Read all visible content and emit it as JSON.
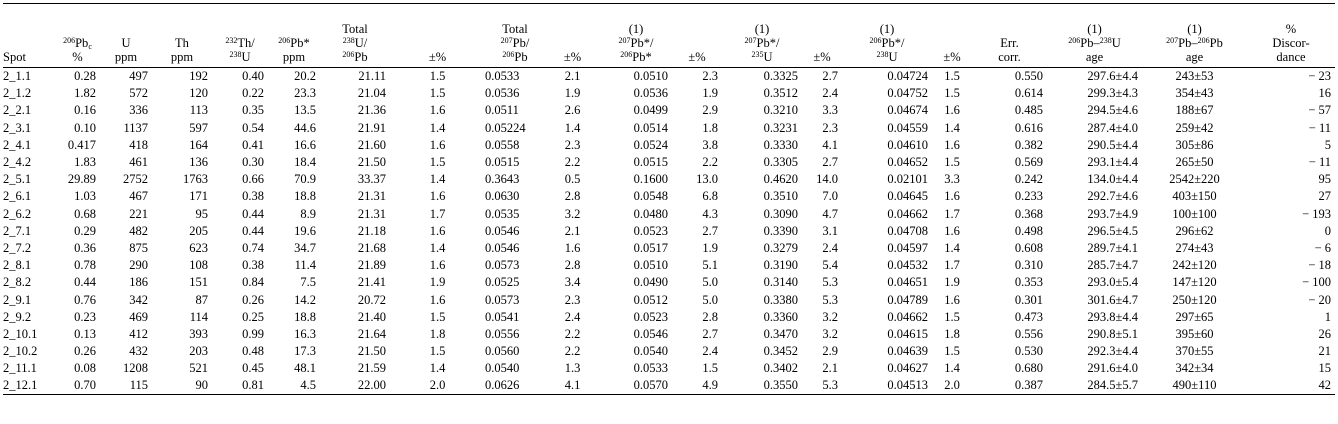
{
  "header": [
    [
      [
        "Spot"
      ]
    ],
    [
      [
        {
          "sup": "206"
        },
        "Pb",
        {
          "sub": "c"
        }
      ],
      [
        "%"
      ]
    ],
    [
      [
        "U"
      ],
      [
        "ppm"
      ]
    ],
    [
      [
        "Th"
      ],
      [
        "ppm"
      ]
    ],
    [
      [
        {
          "sup": "232"
        },
        "Th/"
      ],
      [
        {
          "sup": "238"
        },
        "U"
      ]
    ],
    [
      [
        {
          "sup": "206"
        },
        "Pb*"
      ],
      [
        "ppm"
      ]
    ],
    [
      [
        "Total"
      ],
      [
        {
          "sup": "238"
        },
        "U/"
      ],
      [
        {
          "sup": "206"
        },
        "Pb"
      ]
    ],
    [
      [
        "±%"
      ]
    ],
    [
      [
        "Total"
      ],
      [
        {
          "sup": "207"
        },
        "Pb/"
      ],
      [
        {
          "sup": "206"
        },
        "Pb"
      ]
    ],
    [
      [
        "±%"
      ]
    ],
    [
      [
        "(1)"
      ],
      [
        {
          "sup": "207"
        },
        "Pb*/"
      ],
      [
        {
          "sup": "206"
        },
        "Pb*"
      ]
    ],
    [
      [
        "±%"
      ]
    ],
    [
      [
        "(1)"
      ],
      [
        {
          "sup": "207"
        },
        "Pb*/"
      ],
      [
        {
          "sup": "235"
        },
        "U"
      ]
    ],
    [
      [
        "±%"
      ]
    ],
    [
      [
        "(1)"
      ],
      [
        {
          "sup": "206"
        },
        "Pb*/"
      ],
      [
        {
          "sup": "238"
        },
        "U"
      ]
    ],
    [
      [
        "±%"
      ]
    ],
    [
      [
        "Err."
      ],
      [
        "corr."
      ]
    ],
    [
      [
        "(1)"
      ],
      [
        {
          "sup": "206"
        },
        "Pb–",
        {
          "sup": "238"
        },
        "U"
      ],
      [
        "age"
      ]
    ],
    [
      [
        "(1)"
      ],
      [
        {
          "sup": "207"
        },
        "Pb–",
        {
          "sup": "206"
        },
        "Pb"
      ],
      [
        "age"
      ]
    ],
    [
      [
        "%"
      ],
      [
        "Discor-"
      ],
      [
        "dance"
      ]
    ]
  ],
  "rows": [
    [
      "2_1.1",
      "0.28",
      "497",
      "192",
      "0.40",
      "20.2",
      "21.11",
      "1.5",
      "0.0533",
      "2.1",
      "0.0510",
      "2.3",
      "0.3325",
      "2.7",
      "0.04724",
      "1.5",
      "0.550",
      "297.6±4.4",
      "243±53",
      "− 23"
    ],
    [
      "2_1.2",
      "1.82",
      "572",
      "120",
      "0.22",
      "23.3",
      "21.04",
      "1.5",
      "0.0536",
      "1.9",
      "0.0536",
      "1.9",
      "0.3512",
      "2.4",
      "0.04752",
      "1.5",
      "0.614",
      "299.3±4.3",
      "354±43",
      "16"
    ],
    [
      "2_2.1",
      "0.16",
      "336",
      "113",
      "0.35",
      "13.5",
      "21.36",
      "1.6",
      "0.0511",
      "2.6",
      "0.0499",
      "2.9",
      "0.3210",
      "3.3",
      "0.04674",
      "1.6",
      "0.485",
      "294.5±4.6",
      "188±67",
      "− 57"
    ],
    [
      "2_3.1",
      "0.10",
      "1137",
      "597",
      "0.54",
      "44.6",
      "21.91",
      "1.4",
      "0.05224",
      "1.4",
      "0.0514",
      "1.8",
      "0.3231",
      "2.3",
      "0.04559",
      "1.4",
      "0.616",
      "287.4±4.0",
      "259±42",
      "− 11"
    ],
    [
      "2_4.1",
      "0.417",
      "418",
      "164",
      "0.41",
      "16.6",
      "21.60",
      "1.6",
      "0.0558",
      "2.3",
      "0.0524",
      "3.8",
      "0.3330",
      "4.1",
      "0.04610",
      "1.6",
      "0.382",
      "290.5±4.4",
      "305±86",
      "5"
    ],
    [
      "2_4.2",
      "1.83",
      "461",
      "136",
      "0.30",
      "18.4",
      "21.50",
      "1.5",
      "0.0515",
      "2.2",
      "0.0515",
      "2.2",
      "0.3305",
      "2.7",
      "0.04652",
      "1.5",
      "0.569",
      "293.1±4.4",
      "265±50",
      "− 11"
    ],
    [
      "2_5.1",
      "29.89",
      "2752",
      "1763",
      "0.66",
      "70.9",
      "33.37",
      "1.4",
      "0.3643",
      "0.5",
      "0.1600",
      "13.0",
      "0.4620",
      "14.0",
      "0.02101",
      "3.3",
      "0.242",
      "134.0±4.4",
      "2542±220",
      "95"
    ],
    [
      "2_6.1",
      "1.03",
      "467",
      "171",
      "0.38",
      "18.8",
      "21.31",
      "1.6",
      "0.0630",
      "2.8",
      "0.0548",
      "6.8",
      "0.3510",
      "7.0",
      "0.04645",
      "1.6",
      "0.233",
      "292.7±4.6",
      "403±150",
      "27"
    ],
    [
      "2_6.2",
      "0.68",
      "221",
      "95",
      "0.44",
      "8.9",
      "21.31",
      "1.7",
      "0.0535",
      "3.2",
      "0.0480",
      "4.3",
      "0.3090",
      "4.7",
      "0.04662",
      "1.7",
      "0.368",
      "293.7±4.9",
      "100±100",
      "− 193"
    ],
    [
      "2_7.1",
      "0.29",
      "482",
      "205",
      "0.44",
      "19.6",
      "21.18",
      "1.6",
      "0.0546",
      "2.1",
      "0.0523",
      "2.7",
      "0.3390",
      "3.1",
      "0.04708",
      "1.6",
      "0.498",
      "296.5±4.5",
      "296±62",
      "0"
    ],
    [
      "2_7.2",
      "0.36",
      "875",
      "623",
      "0.74",
      "34.7",
      "21.68",
      "1.4",
      "0.0546",
      "1.6",
      "0.0517",
      "1.9",
      "0.3279",
      "2.4",
      "0.04597",
      "1.4",
      "0.608",
      "289.7±4.1",
      "274±43",
      "− 6"
    ],
    [
      "2_8.1",
      "0.78",
      "290",
      "108",
      "0.38",
      "11.4",
      "21.89",
      "1.6",
      "0.0573",
      "2.8",
      "0.0510",
      "5.1",
      "0.3190",
      "5.4",
      "0.04532",
      "1.7",
      "0.310",
      "285.7±4.7",
      "242±120",
      "− 18"
    ],
    [
      "2_8.2",
      "0.44",
      "186",
      "151",
      "0.84",
      "7.5",
      "21.41",
      "1.9",
      "0.0525",
      "3.4",
      "0.0490",
      "5.0",
      "0.3140",
      "5.3",
      "0.04651",
      "1.9",
      "0.353",
      "293.0±5.4",
      "147±120",
      "− 100"
    ],
    [
      "2_9.1",
      "0.76",
      "342",
      "87",
      "0.26",
      "14.2",
      "20.72",
      "1.6",
      "0.0573",
      "2.3",
      "0.0512",
      "5.0",
      "0.3380",
      "5.3",
      "0.04789",
      "1.6",
      "0.301",
      "301.6±4.7",
      "250±120",
      "− 20"
    ],
    [
      "2_9.2",
      "0.23",
      "469",
      "114",
      "0.25",
      "18.8",
      "21.40",
      "1.5",
      "0.0541",
      "2.4",
      "0.0523",
      "2.8",
      "0.3360",
      "3.2",
      "0.04662",
      "1.5",
      "0.473",
      "293.8±4.4",
      "297±65",
      "1"
    ],
    [
      "2_10.1",
      "0.13",
      "412",
      "393",
      "0.99",
      "16.3",
      "21.64",
      "1.8",
      "0.0556",
      "2.2",
      "0.0546",
      "2.7",
      "0.3470",
      "3.2",
      "0.04615",
      "1.8",
      "0.556",
      "290.8±5.1",
      "395±60",
      "26"
    ],
    [
      "2_10.2",
      "0.26",
      "432",
      "203",
      "0.48",
      "17.3",
      "21.50",
      "1.5",
      "0.0560",
      "2.2",
      "0.0540",
      "2.4",
      "0.3452",
      "2.9",
      "0.04639",
      "1.5",
      "0.530",
      "292.3±4.4",
      "370±55",
      "21"
    ],
    [
      "2_11.1",
      "0.08",
      "1208",
      "521",
      "0.45",
      "48.1",
      "21.59",
      "1.4",
      "0.0540",
      "1.3",
      "0.0533",
      "1.5",
      "0.3402",
      "2.1",
      "0.04627",
      "1.4",
      "0.680",
      "291.6±4.0",
      "342±34",
      "15"
    ],
    [
      "2_12.1",
      "0.70",
      "115",
      "90",
      "0.81",
      "4.5",
      "22.00",
      "2.0",
      "0.0626",
      "4.1",
      "0.0570",
      "4.9",
      "0.3550",
      "5.3",
      "0.04513",
      "2.0",
      "0.387",
      "284.5±5.7",
      "490±110",
      "42"
    ]
  ]
}
